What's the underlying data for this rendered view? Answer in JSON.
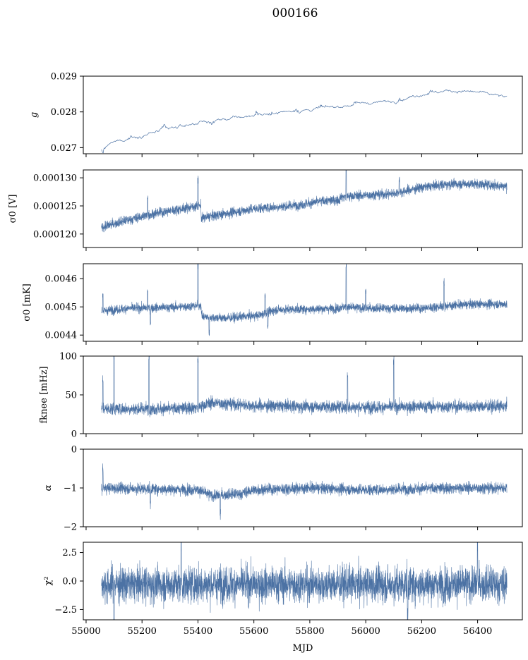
{
  "title": "000166",
  "chart_data": {
    "type": "line",
    "xlabel": "MJD",
    "xlim": [
      54990,
      56560
    ],
    "xticks": [
      55000,
      55200,
      55400,
      55600,
      55800,
      56000,
      56200,
      56400
    ],
    "xticklabels": [
      "55000",
      "55200",
      "55400",
      "55600",
      "55800",
      "56000",
      "56200",
      "56400"
    ],
    "color": "#4c72a4",
    "data_range_x": [
      55055,
      56505
    ],
    "panels": [
      {
        "ylabel_text": "g",
        "ylim": [
          0.02683,
          0.029
        ],
        "yticks": [
          0.027,
          0.028,
          0.029
        ],
        "yticklabels": [
          "0.027",
          "0.028",
          "0.029"
        ],
        "style": "thin",
        "trend": [
          [
            55055,
            0.02695
          ],
          [
            55100,
            0.02715
          ],
          [
            55200,
            0.02735
          ],
          [
            55300,
            0.02752
          ],
          [
            55400,
            0.0277
          ],
          [
            55500,
            0.0278
          ],
          [
            55600,
            0.0279
          ],
          [
            55700,
            0.028
          ],
          [
            55800,
            0.02806
          ],
          [
            55900,
            0.02815
          ],
          [
            56000,
            0.02825
          ],
          [
            56100,
            0.0283
          ],
          [
            56200,
            0.0285
          ],
          [
            56300,
            0.0286
          ],
          [
            56400,
            0.02855
          ],
          [
            56505,
            0.0284
          ]
        ],
        "noise": 3.5e-05,
        "spikes": [
          [
            55060,
            -0.00012
          ],
          [
            55160,
            8e-05
          ],
          [
            55280,
            0.00012
          ],
          [
            55450,
            -0.00014
          ],
          [
            55610,
            0.00013
          ],
          [
            55660,
            -0.0001
          ],
          [
            55750,
            0.0001
          ],
          [
            55840,
            8e-05
          ],
          [
            55960,
            8e-05
          ],
          [
            56120,
            0.0001
          ],
          [
            56230,
            0.00012
          ]
        ]
      },
      {
        "ylabel_text": "σ0 [V]",
        "ylim": [
          0.0001176,
          0.0001314
        ],
        "yticks": [
          0.00012,
          0.000125,
          0.00013
        ],
        "yticklabels": [
          "0.000120",
          "0.000125",
          "0.000130"
        ],
        "style": "dense",
        "trend": [
          [
            55055,
            0.0001212
          ],
          [
            55150,
            0.0001225
          ],
          [
            55250,
            0.0001237
          ],
          [
            55410,
            0.0001251
          ],
          [
            55412,
            0.0001228
          ],
          [
            55450,
            0.0001232
          ],
          [
            55600,
            0.0001245
          ],
          [
            55750,
            0.0001251
          ],
          [
            55850,
            0.0001259
          ],
          [
            55905,
            0.000126
          ],
          [
            55910,
            0.0001266
          ],
          [
            56000,
            0.0001269
          ],
          [
            56100,
            0.0001272
          ],
          [
            56200,
            0.0001283
          ],
          [
            56300,
            0.0001289
          ],
          [
            56400,
            0.0001289
          ],
          [
            56505,
            0.0001285
          ]
        ],
        "noise": 6e-07,
        "spikes": [
          [
            55220,
            3.5e-06
          ],
          [
            55400,
            4.5e-06
          ],
          [
            55930,
            5e-06
          ],
          [
            56120,
            2.5e-06
          ]
        ]
      },
      {
        "ylabel_text": "σ0 [mK]",
        "ylim": [
          0.004378,
          0.004653
        ],
        "yticks": [
          0.0044,
          0.0045,
          0.0046
        ],
        "yticklabels": [
          "0.0044",
          "0.0045",
          "0.0046"
        ],
        "style": "dense",
        "trend": [
          [
            55055,
            0.004485
          ],
          [
            55150,
            0.004495
          ],
          [
            55300,
            0.004498
          ],
          [
            55410,
            0.004505
          ],
          [
            55415,
            0.004465
          ],
          [
            55500,
            0.00446
          ],
          [
            55620,
            0.00447
          ],
          [
            55680,
            0.00449
          ],
          [
            55800,
            0.004492
          ],
          [
            55905,
            0.004495
          ],
          [
            55910,
            0.0045
          ],
          [
            56000,
            0.004495
          ],
          [
            56200,
            0.004495
          ],
          [
            56300,
            0.004505
          ],
          [
            56400,
            0.00451
          ],
          [
            56505,
            0.00451
          ]
        ],
        "noise": 1.1e-05,
        "spikes": [
          [
            55060,
            6e-05
          ],
          [
            55220,
            6e-05
          ],
          [
            55230,
            -5e-05
          ],
          [
            55400,
            0.00015
          ],
          [
            55440,
            -6e-05
          ],
          [
            55640,
            7e-05
          ],
          [
            55650,
            -5e-05
          ],
          [
            55930,
            0.00015
          ],
          [
            56000,
            6e-05
          ],
          [
            56280,
            8e-05
          ]
        ]
      },
      {
        "ylabel_text": "fknee [mHz]",
        "ylim": [
          0,
          100
        ],
        "yticks": [
          0,
          50,
          100
        ],
        "yticklabels": [
          "0",
          "50",
          "100"
        ],
        "style": "dense",
        "trend": [
          [
            55055,
            32
          ],
          [
            55300,
            32
          ],
          [
            55400,
            34
          ],
          [
            55450,
            40
          ],
          [
            55600,
            36
          ],
          [
            55800,
            35
          ],
          [
            56000,
            34
          ],
          [
            56200,
            35
          ],
          [
            56505,
            35
          ]
        ],
        "noise": 5.5,
        "spikes": [
          [
            55100,
            68
          ],
          [
            55225,
            70
          ],
          [
            55400,
            60
          ],
          [
            56100,
            60
          ],
          [
            55935,
            40
          ],
          [
            55060,
            35
          ]
        ]
      },
      {
        "ylabel_text": "α",
        "ylim": [
          -2,
          0
        ],
        "yticks": [
          -2,
          -1,
          0
        ],
        "yticklabels": [
          "−2",
          "−1",
          "0"
        ],
        "style": "dense",
        "trend": [
          [
            55055,
            -1.0
          ],
          [
            55400,
            -1.05
          ],
          [
            55450,
            -1.2
          ],
          [
            55550,
            -1.15
          ],
          [
            55600,
            -1.05
          ],
          [
            55800,
            -1.0
          ],
          [
            56000,
            -1.05
          ],
          [
            56300,
            -1.0
          ],
          [
            56505,
            -1.0
          ]
        ],
        "noise": 0.1,
        "spikes": [
          [
            55060,
            0.5
          ],
          [
            55480,
            -0.5
          ],
          [
            55230,
            -0.4
          ]
        ]
      },
      {
        "ylabel_text": "χ²",
        "ylim": [
          -3.4,
          3.4
        ],
        "yticks": [
          -2.5,
          0.0,
          2.5
        ],
        "yticklabels": [
          "−2.5",
          "0.0",
          "2.5"
        ],
        "style": "dense",
        "trend": [
          [
            55055,
            -0.3
          ],
          [
            56505,
            -0.3
          ]
        ],
        "noise": 1.1,
        "spikes": [
          [
            55340,
            3.3
          ],
          [
            56400,
            3.2
          ],
          [
            55100,
            -3.2
          ],
          [
            56150,
            -3.0
          ]
        ]
      }
    ]
  }
}
